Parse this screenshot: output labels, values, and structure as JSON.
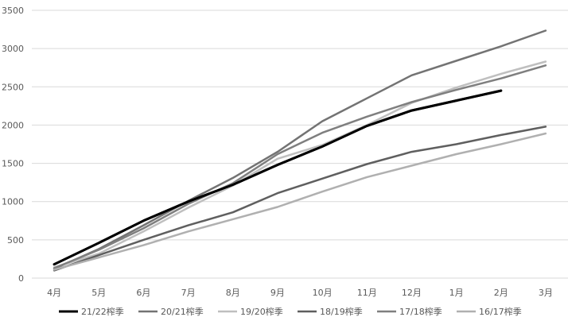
{
  "chart_data": {
    "type": "line",
    "title": "",
    "xlabel": "",
    "ylabel": "",
    "categories": [
      "4月",
      "5月",
      "6月",
      "7月",
      "8月",
      "9月",
      "10月",
      "11月",
      "12月",
      "1月",
      "2月",
      "3月"
    ],
    "ylim": [
      0,
      3500
    ],
    "yticks": [
      0,
      500,
      1000,
      1500,
      2000,
      2500,
      3000,
      3500
    ],
    "grid": true,
    "legend_position": "bottom",
    "series": [
      {
        "name": "21/22榨季",
        "color": "#000000",
        "values": [
          180,
          460,
          750,
          1000,
          1220,
          1480,
          1720,
          1990,
          2190,
          2320,
          2450,
          null
        ]
      },
      {
        "name": "20/21榨季",
        "color": "#737373",
        "values": [
          120,
          380,
          690,
          1010,
          1310,
          1650,
          2050,
          2350,
          2650,
          2840,
          3030,
          3235
        ]
      },
      {
        "name": "19/20榨季",
        "color": "#bfbfbf",
        "values": [
          140,
          320,
          610,
          920,
          1210,
          1560,
          1740,
          2000,
          2290,
          2490,
          2670,
          2830
        ]
      },
      {
        "name": "18/19榨季",
        "color": "#5f5f5f",
        "values": [
          100,
          300,
          500,
          690,
          860,
          1110,
          1300,
          1490,
          1650,
          1750,
          1870,
          1980
        ]
      },
      {
        "name": "17/18榨季",
        "color": "#7f7f7f",
        "values": [
          130,
          370,
          650,
          970,
          1240,
          1620,
          1900,
          2110,
          2300,
          2460,
          2610,
          2780
        ]
      },
      {
        "name": "16/17榨季",
        "color": "#b0b0b0",
        "values": [
          110,
          270,
          430,
          610,
          770,
          930,
          1130,
          1320,
          1470,
          1620,
          1750,
          1890
        ]
      }
    ]
  }
}
